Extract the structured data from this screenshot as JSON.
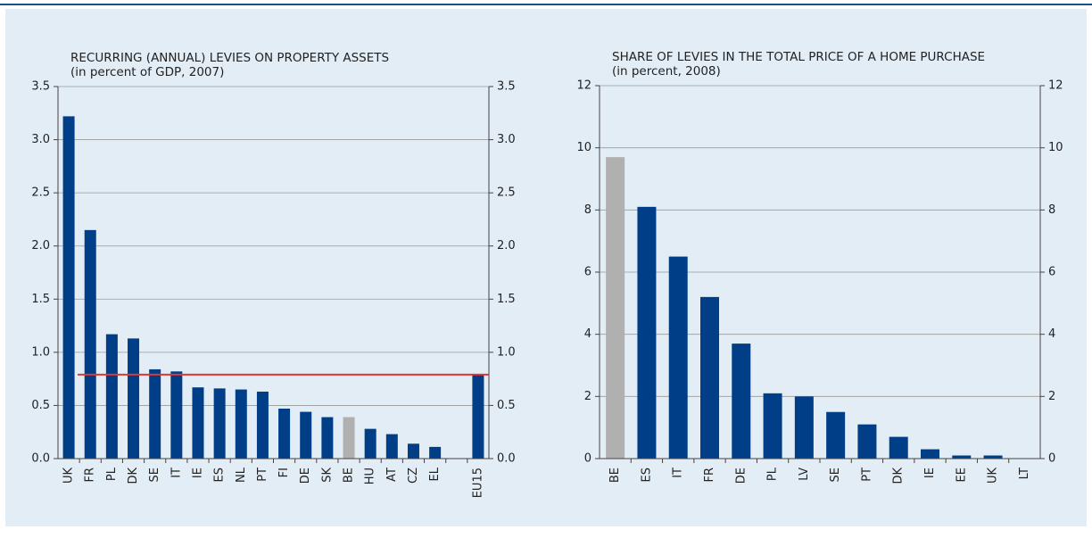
{
  "chart_data": [
    {
      "type": "bar",
      "title": "RECURRING (ANNUAL) LEVIES ON PROPERTY ASSETS",
      "subtitle": "(in percent of GDP, 2007)",
      "categories": [
        "UK",
        "FR",
        "PL",
        "DK",
        "SE",
        "IT",
        "IE",
        "ES",
        "NL",
        "PT",
        "FI",
        "DE",
        "SK",
        "BE",
        "HU",
        "AT",
        "CZ",
        "EL",
        null,
        "EU15"
      ],
      "values": [
        3.22,
        2.15,
        1.17,
        1.13,
        0.84,
        0.82,
        0.67,
        0.66,
        0.65,
        0.63,
        0.47,
        0.44,
        0.39,
        0.39,
        0.28,
        0.23,
        0.14,
        0.11,
        null,
        0.79
      ],
      "colors": [
        "#003f87",
        "#003f87",
        "#003f87",
        "#003f87",
        "#003f87",
        "#003f87",
        "#003f87",
        "#003f87",
        "#003f87",
        "#003f87",
        "#003f87",
        "#003f87",
        "#003f87",
        "#b0b0b0",
        "#003f87",
        "#003f87",
        "#003f87",
        "#003f87",
        "#003f87",
        "#003f87"
      ],
      "reference_line": {
        "value": 0.79,
        "color": "#e3342f"
      },
      "ylim": [
        0,
        3.5
      ],
      "yticks": [
        {
          "value": 0,
          "label": "0.0"
        },
        {
          "value": 0.5,
          "label": "0.5"
        },
        {
          "value": 1,
          "label": "1.0"
        },
        {
          "value": 1.5,
          "label": "1.5"
        },
        {
          "value": 2,
          "label": "2.0"
        },
        {
          "value": 2.5,
          "label": "2.5"
        },
        {
          "value": 3,
          "label": "3.0"
        },
        {
          "value": 3.5,
          "label": "3.5"
        }
      ],
      "grid": true
    },
    {
      "type": "bar",
      "title": "SHARE OF LEVIES IN THE TOTAL PRICE OF A HOME PURCHASE",
      "subtitle": "(in percent, 2008)",
      "categories": [
        "BE",
        "ES",
        "IT",
        "FR",
        "DE",
        "PL",
        "LV",
        "SE",
        "PT",
        "DK",
        "IE",
        "EE",
        "UK",
        "LT"
      ],
      "values": [
        9.7,
        8.1,
        6.5,
        5.2,
        3.7,
        2.1,
        2.0,
        1.5,
        1.1,
        0.7,
        0.3,
        0.1,
        0.1,
        0
      ],
      "colors": [
        "#b0b0b0",
        "#003f87",
        "#003f87",
        "#003f87",
        "#003f87",
        "#003f87",
        "#003f87",
        "#003f87",
        "#003f87",
        "#003f87",
        "#003f87",
        "#003f87",
        "#003f87",
        "#003f87"
      ],
      "ylim": [
        0,
        12
      ],
      "yticks": [
        0,
        2,
        4,
        6,
        8,
        10,
        12
      ],
      "grid": true
    }
  ]
}
